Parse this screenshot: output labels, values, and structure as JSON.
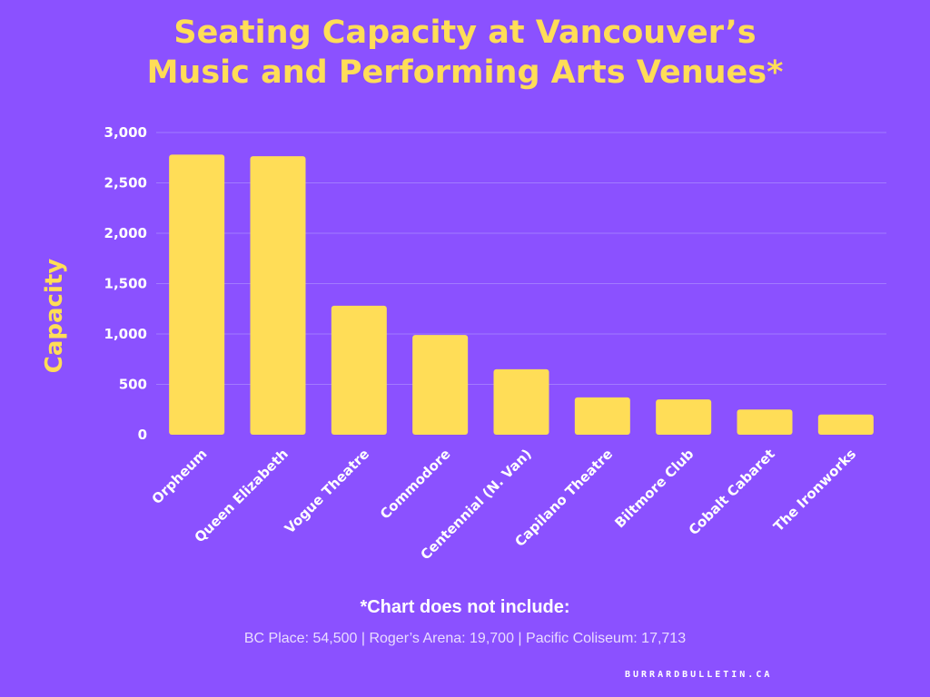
{
  "title_line1": "Seating Capacity at Vancouver’s",
  "title_line2": "Music and Performing Arts Venues*",
  "footnote_heading": "*Chart does not include:",
  "footnote_text": "BC Place: 54,500 | Roger’s Arena: 19,700 | Pacific Coliseum: 17,713",
  "footer": "BURRARDBULLETIN.CA",
  "colors": {
    "background": "#8b51ff",
    "bar": "#ffdd57",
    "title": "#ffdd57",
    "axis_text": "#ffffff"
  },
  "chart_data": {
    "type": "bar",
    "title": "Seating Capacity at Vancouver’s Music and Performing Arts Venues*",
    "xlabel": "",
    "ylabel": "Capacity",
    "categories": [
      "Orpheum",
      "Queen Elizabeth",
      "Vogue Theatre",
      "Commodore",
      "Centennial (N. Van)",
      "Capilano Theatre",
      "Biltmore Club",
      "Cobalt Cabaret",
      "The Ironworks"
    ],
    "values": [
      2780,
      2765,
      1280,
      990,
      650,
      370,
      350,
      250,
      200
    ],
    "ylim": [
      0,
      3000
    ],
    "yticks": [
      0,
      500,
      1000,
      1500,
      2000,
      2500,
      3000
    ],
    "ytick_labels": [
      "0",
      "500",
      "1,000",
      "1,500",
      "2,000",
      "2,500",
      "3,000"
    ],
    "grid": true,
    "legend": "none"
  }
}
